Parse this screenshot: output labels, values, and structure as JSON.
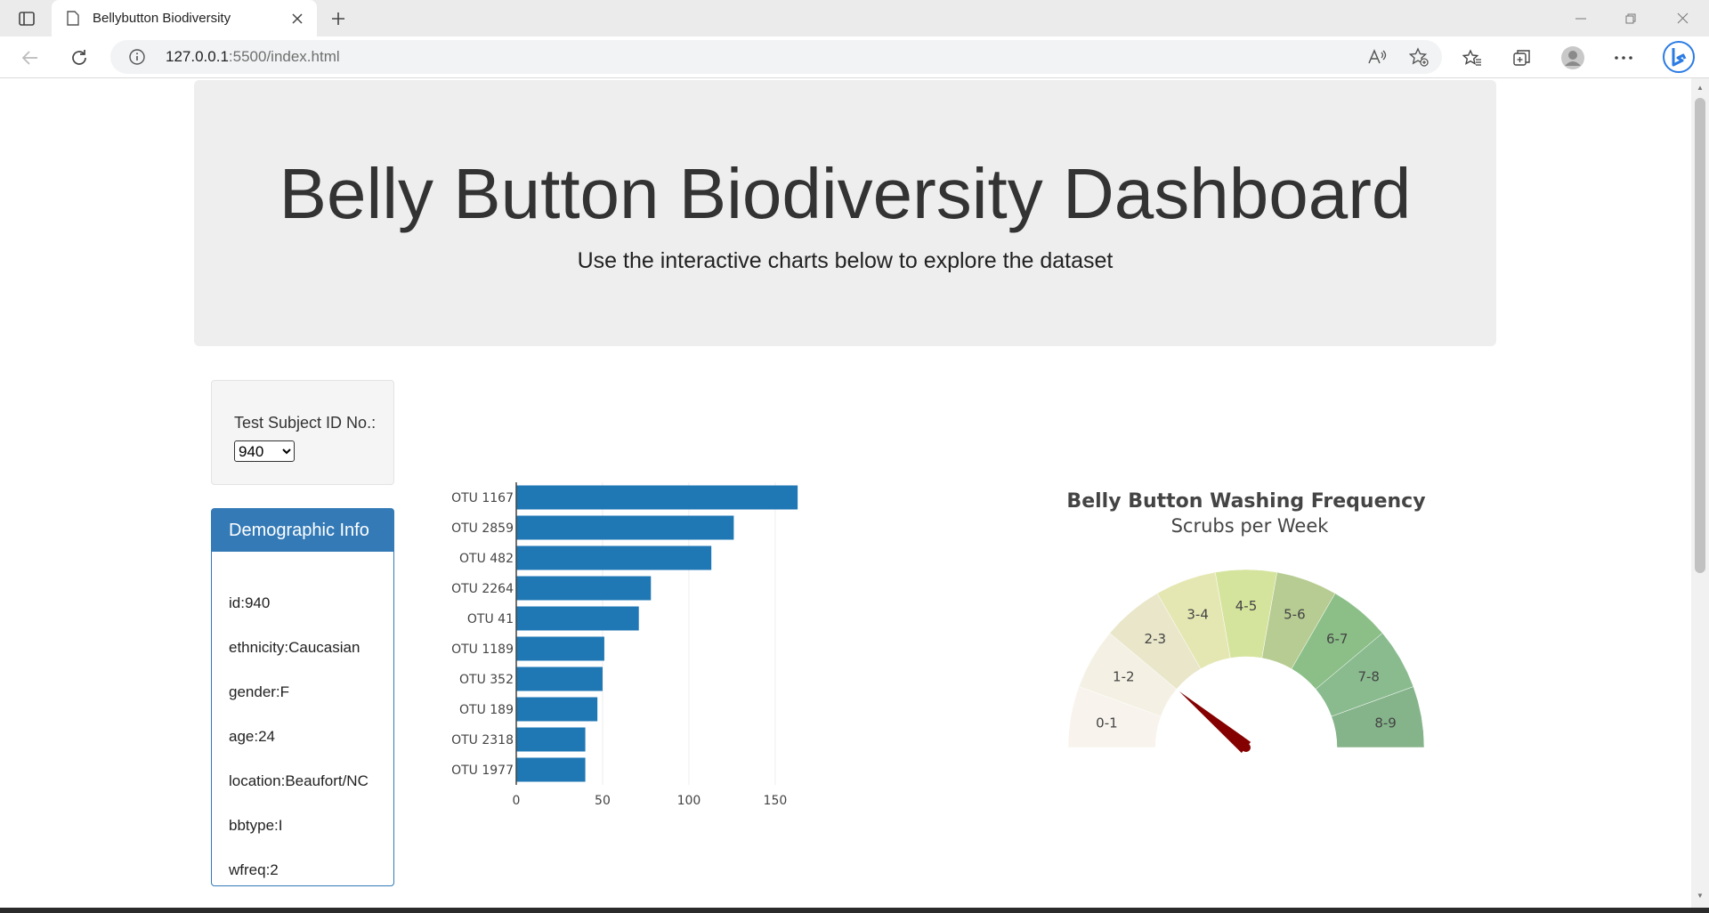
{
  "browser": {
    "tab_title": "Bellybutton Biodiversity",
    "url_host": "127.0.0.1",
    "url_rest": ":5500/index.html"
  },
  "header": {
    "title": "Belly Button Biodiversity Dashboard",
    "subtitle": "Use the interactive charts below to explore the dataset"
  },
  "selector": {
    "label": "Test Subject ID No.:",
    "selected": "940"
  },
  "demographics": {
    "heading": "Demographic Info",
    "rows": [
      "id:940",
      "ethnicity:Caucasian",
      "gender:F",
      "age:24",
      "location:Beaufort/NC",
      "bbtype:I",
      "wfreq:2"
    ]
  },
  "chart_data": [
    {
      "type": "bar",
      "orientation": "horizontal",
      "categories": [
        "OTU 1167",
        "OTU 2859",
        "OTU 482",
        "OTU 2264",
        "OTU 41",
        "OTU 1189",
        "OTU 352",
        "OTU 189",
        "OTU 2318",
        "OTU 1977"
      ],
      "values": [
        163,
        126,
        113,
        78,
        71,
        51,
        50,
        47,
        40,
        40
      ],
      "xlim": [
        0,
        165
      ],
      "xticks": [
        0,
        50,
        100,
        150
      ],
      "grid": true,
      "color": "#1f77b4"
    },
    {
      "type": "gauge",
      "title": "Belly Button Washing Frequency",
      "subtitle": "Scrubs per Week",
      "range": [
        0,
        9
      ],
      "steps": [
        "0-1",
        "1-2",
        "2-3",
        "3-4",
        "4-5",
        "5-6",
        "6-7",
        "7-8",
        "8-9"
      ],
      "colors": [
        "#f8f3ec",
        "#f4f1e4",
        "#e9e6ca",
        "#e5e7b3",
        "#d5e49d",
        "#b7cc92",
        "#8cbf88",
        "#8abb8f",
        "#85b48a"
      ],
      "value": 2,
      "needle_color": "#850000"
    }
  ]
}
